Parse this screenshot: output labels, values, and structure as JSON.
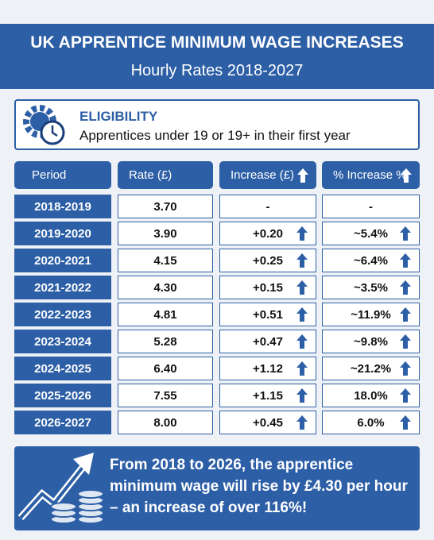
{
  "header": {
    "title": "UK APPRENTICE MINIMUM WAGE INCREASES",
    "subtitle": "Hourly Rates 2018-2027"
  },
  "eligibility": {
    "label": "ELIGIBILITY",
    "text": "Apprentices under 19 or 19+ in their first year"
  },
  "table": {
    "columns": [
      "Period",
      "Rate (£)",
      "Increase (£)",
      "% Increase %"
    ],
    "rows": [
      [
        "2018-2019",
        "3.70",
        "-",
        "-"
      ],
      [
        "2019-2020",
        "3.90",
        "+0.20",
        "~5.4%"
      ],
      [
        "2020-2021",
        "4.15",
        "+0.25",
        "~6.4%"
      ],
      [
        "2021-2022",
        "4.30",
        "+0.15",
        "~3.5%"
      ],
      [
        "2022-2023",
        "4.81",
        "+0.51",
        "~11.9%"
      ],
      [
        "2023-2024",
        "5.28",
        "+0.47",
        "~9.8%"
      ],
      [
        "2024-2025",
        "6.40",
        "+1.12",
        "~21.2%"
      ],
      [
        "2025-2026",
        "7.55",
        "+1.15",
        "18.0%"
      ],
      [
        "2026-2027",
        "8.00",
        "+0.45",
        "6.0%"
      ]
    ]
  },
  "summary": {
    "text": "From 2018 to 2026, the apprentice minimum wage will rise by £4.30 per hour – an increase of over 116%!"
  }
}
